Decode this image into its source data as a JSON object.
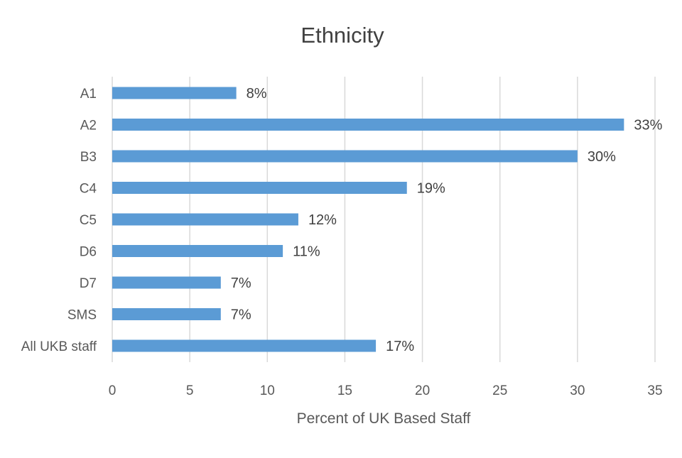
{
  "chart_data": {
    "type": "bar",
    "orientation": "horizontal",
    "title": "Ethnicity",
    "xlabel": "Percent of UK Based Staff",
    "ylabel": "",
    "categories": [
      "A1",
      "A2",
      "B3",
      "C4",
      "C5",
      "D6",
      "D7",
      "SMS",
      "All UKB staff"
    ],
    "values": [
      8,
      33,
      30,
      19,
      12,
      11,
      7,
      7,
      17
    ],
    "data_labels": [
      "8%",
      "33%",
      "30%",
      "19%",
      "12%",
      "11%",
      "7%",
      "7%",
      "17%"
    ],
    "xlim": [
      0,
      35
    ],
    "xticks": [
      0,
      5,
      10,
      15,
      20,
      25,
      30,
      35
    ],
    "grid": "vertical",
    "legend": "none",
    "bar_color": "#5b9bd5",
    "grid_color": "#d9d9d9",
    "text_color": "#404040"
  }
}
